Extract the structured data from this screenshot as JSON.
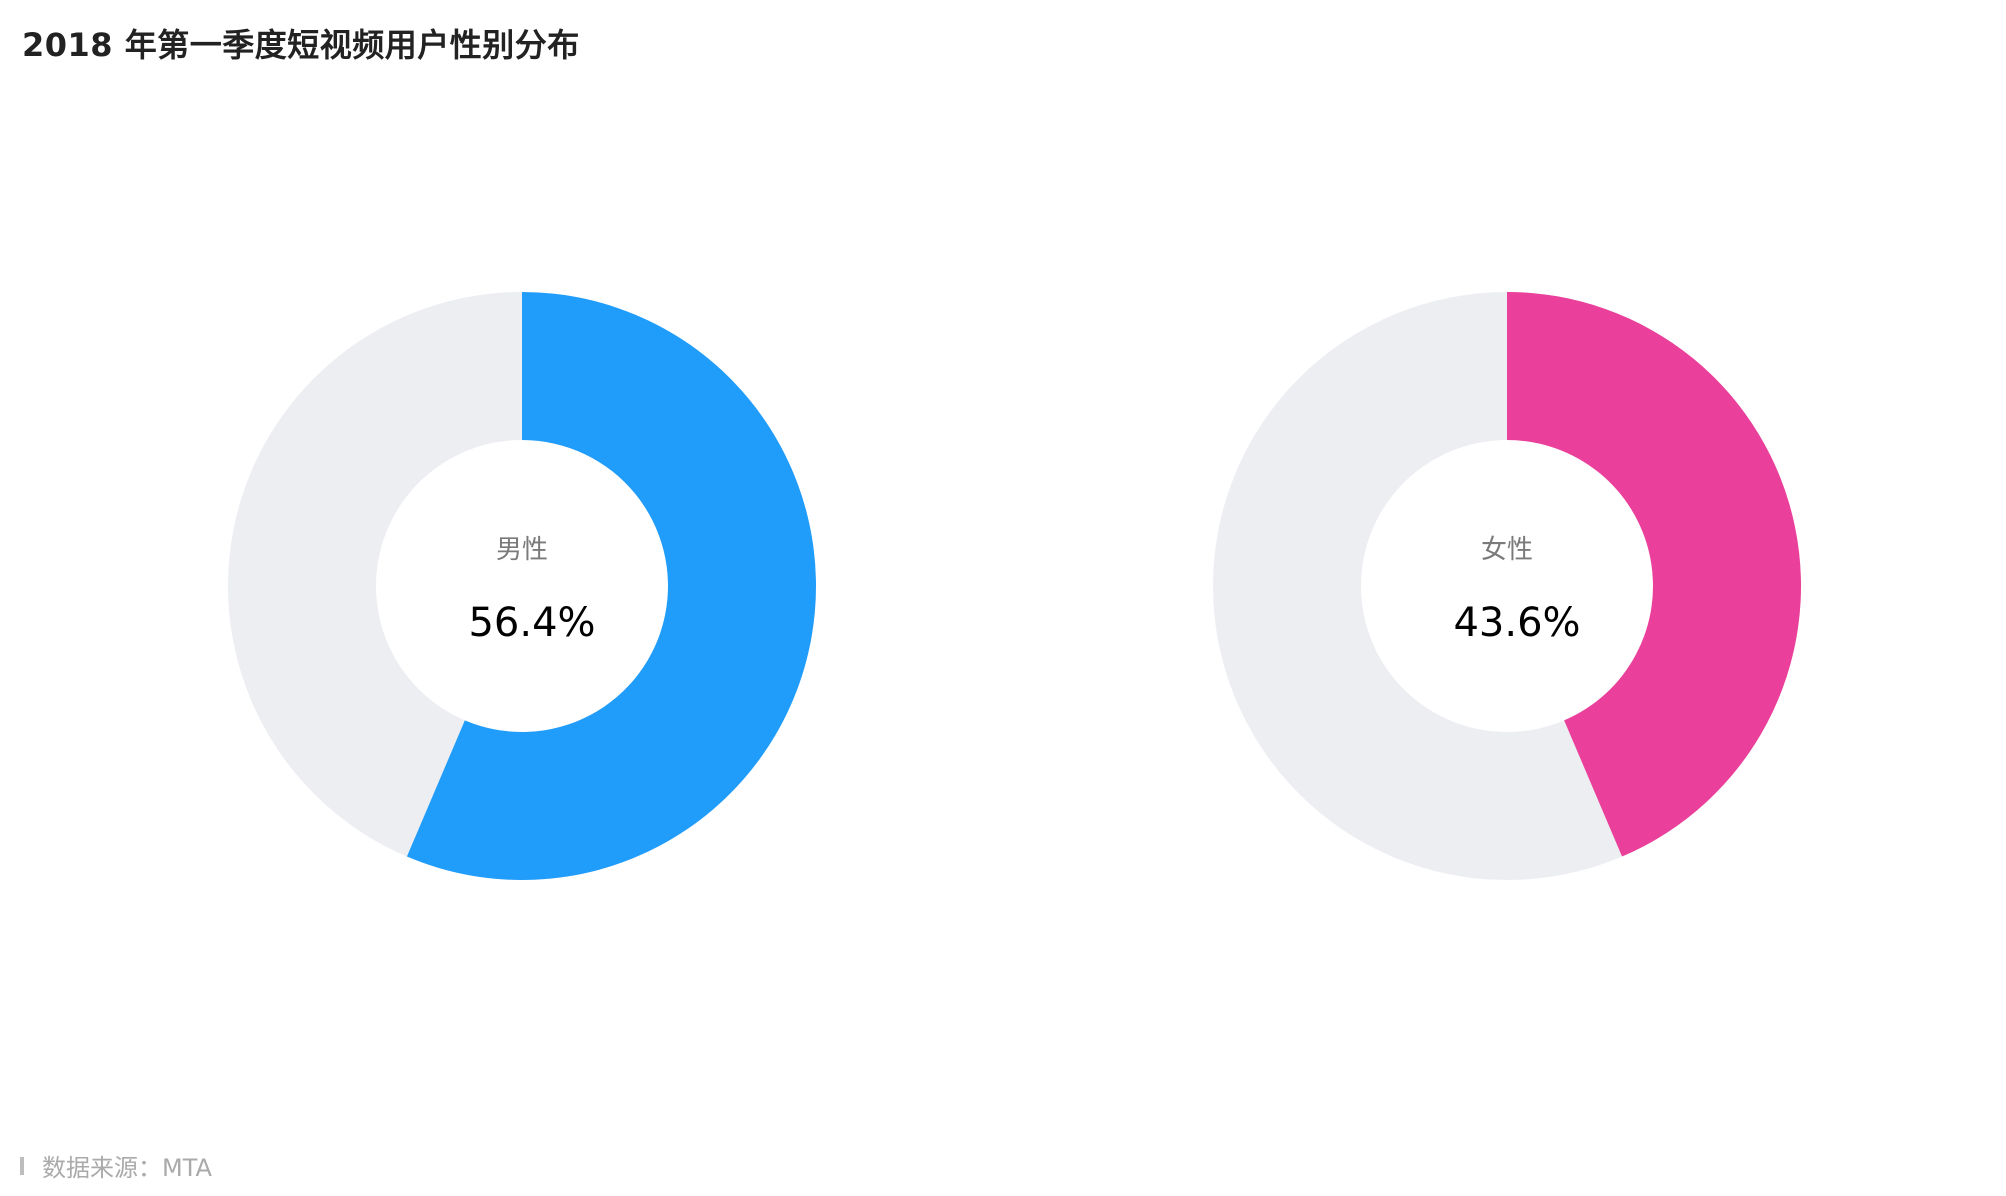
{
  "title": "2018 年第一季度短视频用户性别分布",
  "source": {
    "text": "数据来源：MTA"
  },
  "colors": {
    "track": "#EDEEF2",
    "center_label": "#7A7A7A",
    "center_value": "#000000"
  },
  "chart_data": [
    {
      "type": "pie",
      "subtype": "donut",
      "label": "男性",
      "value": 56.4,
      "display": "56.4%",
      "max": 100,
      "color": "#209CFA"
    },
    {
      "type": "pie",
      "subtype": "donut",
      "label": "女性",
      "value": 43.6,
      "display": "43.6%",
      "max": 100,
      "color": "#EA3F9A"
    }
  ]
}
